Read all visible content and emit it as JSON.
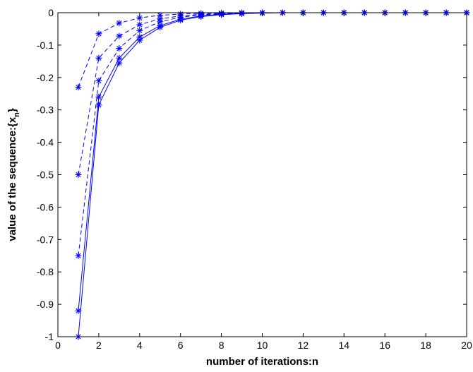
{
  "chart_data": {
    "type": "line",
    "xlabel": "number of iterations:n",
    "ylabel_main": "value of the sequence:{x",
    "ylabel_sub": "n",
    "ylabel_end": "}",
    "xlim": [
      0,
      20
    ],
    "ylim": [
      -1,
      0
    ],
    "xticks": [
      0,
      2,
      4,
      6,
      8,
      10,
      12,
      14,
      16,
      18,
      20
    ],
    "yticks": [
      0,
      -0.1,
      -0.2,
      -0.3,
      -0.4,
      -0.5,
      -0.6,
      -0.7,
      -0.8,
      -0.9,
      -1
    ],
    "ytick_labels": [
      "0",
      "-0.1",
      "-0.2",
      "-0.3",
      "-0.4",
      "-0.5",
      "-0.6",
      "-0.7",
      "-0.8",
      "-0.9",
      "-1"
    ],
    "grid": false,
    "line_color": "#0000ff",
    "marker": "asterisk",
    "x": [
      1,
      2,
      3,
      4,
      5,
      6,
      7,
      8,
      9,
      10,
      11,
      12,
      13,
      14,
      15,
      16,
      17,
      18,
      19,
      20
    ],
    "series": [
      {
        "line_style": "dashed",
        "values": [
          -0.23,
          -0.065,
          -0.032,
          -0.016,
          -0.008,
          -0.004,
          -0.002,
          -0.001,
          0,
          0,
          0,
          0,
          0,
          0,
          0,
          0,
          0,
          0,
          0,
          0
        ]
      },
      {
        "line_style": "dashed",
        "values": [
          -0.5,
          -0.14,
          -0.072,
          -0.037,
          -0.019,
          -0.01,
          -0.005,
          -0.0025,
          -0.001,
          0,
          0,
          0,
          0,
          0,
          0,
          0,
          0,
          0,
          0,
          0
        ]
      },
      {
        "line_style": "dashed",
        "values": [
          -0.75,
          -0.21,
          -0.11,
          -0.055,
          -0.028,
          -0.014,
          -0.007,
          -0.0035,
          -0.0015,
          -0.0005,
          0,
          0,
          0,
          0,
          0,
          0,
          0,
          0,
          0,
          0
        ]
      },
      {
        "line_style": "solid",
        "values": [
          -0.92,
          -0.26,
          -0.14,
          -0.075,
          -0.04,
          -0.02,
          -0.01,
          -0.005,
          -0.002,
          -0.001,
          0,
          0,
          0,
          0,
          0,
          0,
          0,
          0,
          0,
          0
        ]
      },
      {
        "line_style": "solid",
        "values": [
          -1.0,
          -0.285,
          -0.155,
          -0.085,
          -0.045,
          -0.023,
          -0.012,
          -0.006,
          -0.003,
          -0.001,
          0,
          0,
          0,
          0,
          0,
          0,
          0,
          0,
          0,
          0
        ]
      }
    ]
  }
}
